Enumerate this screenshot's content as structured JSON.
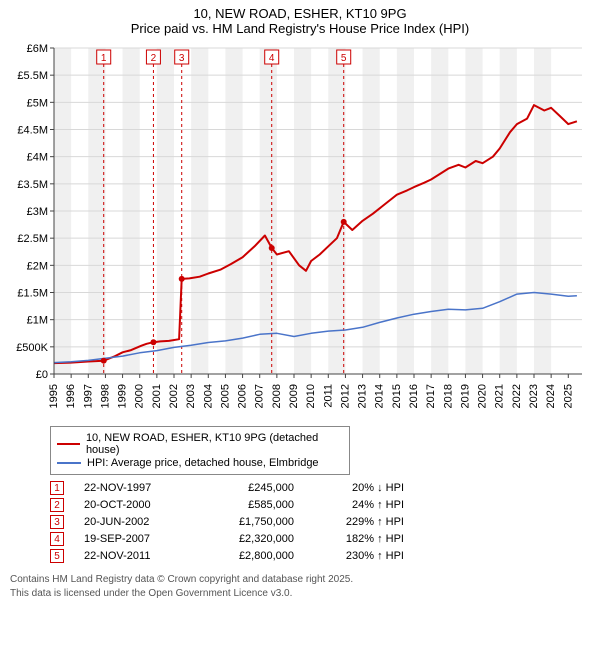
{
  "title": {
    "line1": "10, NEW ROAD, ESHER, KT10 9PG",
    "line2": "Price paid vs. HM Land Registry's House Price Index (HPI)"
  },
  "chart": {
    "type": "line",
    "background_color": "#ffffff",
    "grid_color": "#d8d8d8",
    "grid_alt_fill": "#f0f0f0",
    "axis_color": "#444444",
    "xlim": [
      1995,
      2025.8
    ],
    "ylim": [
      0,
      6000000
    ],
    "x_ticks": [
      1995,
      1996,
      1997,
      1998,
      1999,
      2000,
      2001,
      2002,
      2003,
      2004,
      2005,
      2006,
      2007,
      2008,
      2009,
      2010,
      2011,
      2012,
      2013,
      2014,
      2015,
      2016,
      2017,
      2018,
      2019,
      2020,
      2021,
      2022,
      2023,
      2024,
      2025
    ],
    "y_ticks_values": [
      0,
      500000,
      1000000,
      1500000,
      2000000,
      2500000,
      3000000,
      3500000,
      4000000,
      4500000,
      5000000,
      5500000,
      6000000
    ],
    "y_ticks_labels": [
      "£0",
      "£500K",
      "£1M",
      "£1.5M",
      "£2M",
      "£2.5M",
      "£3M",
      "£3.5M",
      "£4M",
      "£4.5M",
      "£5M",
      "£5.5M",
      "£6M"
    ],
    "x_label_fontsize": 11,
    "y_label_fontsize": 11,
    "series": [
      {
        "name": "property",
        "label": "10, NEW ROAD, ESHER, KT10 9PG (detached house)",
        "color": "#cc0000",
        "line_width": 2,
        "points": [
          [
            1995.0,
            200000
          ],
          [
            1996.0,
            210000
          ],
          [
            1997.0,
            230000
          ],
          [
            1997.9,
            245000
          ],
          [
            1998.5,
            320000
          ],
          [
            1999.0,
            400000
          ],
          [
            1999.5,
            440000
          ],
          [
            2000.1,
            520000
          ],
          [
            2000.4,
            555000
          ],
          [
            2000.8,
            585000
          ],
          [
            2001.2,
            600000
          ],
          [
            2001.7,
            610000
          ],
          [
            2002.3,
            640000
          ],
          [
            2002.45,
            1750000
          ],
          [
            2002.9,
            1760000
          ],
          [
            2003.5,
            1790000
          ],
          [
            2004.0,
            1850000
          ],
          [
            2004.7,
            1920000
          ],
          [
            2005.3,
            2020000
          ],
          [
            2006.0,
            2150000
          ],
          [
            2006.7,
            2350000
          ],
          [
            2007.3,
            2550000
          ],
          [
            2007.7,
            2320000
          ],
          [
            2008.0,
            2200000
          ],
          [
            2008.7,
            2260000
          ],
          [
            2009.3,
            2000000
          ],
          [
            2009.7,
            1900000
          ],
          [
            2010.0,
            2080000
          ],
          [
            2010.5,
            2200000
          ],
          [
            2011.0,
            2350000
          ],
          [
            2011.5,
            2500000
          ],
          [
            2011.9,
            2800000
          ],
          [
            2012.4,
            2650000
          ],
          [
            2013.0,
            2820000
          ],
          [
            2013.6,
            2950000
          ],
          [
            2014.0,
            3050000
          ],
          [
            2014.6,
            3200000
          ],
          [
            2015.0,
            3300000
          ],
          [
            2015.6,
            3380000
          ],
          [
            2016.0,
            3440000
          ],
          [
            2016.6,
            3520000
          ],
          [
            2017.0,
            3580000
          ],
          [
            2017.6,
            3700000
          ],
          [
            2018.0,
            3780000
          ],
          [
            2018.6,
            3850000
          ],
          [
            2019.0,
            3800000
          ],
          [
            2019.6,
            3920000
          ],
          [
            2020.0,
            3880000
          ],
          [
            2020.6,
            4000000
          ],
          [
            2021.0,
            4150000
          ],
          [
            2021.6,
            4450000
          ],
          [
            2022.0,
            4600000
          ],
          [
            2022.6,
            4700000
          ],
          [
            2023.0,
            4950000
          ],
          [
            2023.6,
            4850000
          ],
          [
            2024.0,
            4900000
          ],
          [
            2024.5,
            4750000
          ],
          [
            2025.0,
            4600000
          ],
          [
            2025.5,
            4650000
          ]
        ]
      },
      {
        "name": "hpi",
        "label": "HPI: Average price, detached house, Elmbridge",
        "color": "#4a74c9",
        "line_width": 1.5,
        "points": [
          [
            1995.0,
            210000
          ],
          [
            1996.0,
            225000
          ],
          [
            1997.0,
            250000
          ],
          [
            1998.0,
            290000
          ],
          [
            1999.0,
            330000
          ],
          [
            2000.0,
            390000
          ],
          [
            2001.0,
            430000
          ],
          [
            2002.0,
            490000
          ],
          [
            2003.0,
            530000
          ],
          [
            2004.0,
            580000
          ],
          [
            2005.0,
            610000
          ],
          [
            2006.0,
            660000
          ],
          [
            2007.0,
            730000
          ],
          [
            2008.0,
            750000
          ],
          [
            2009.0,
            690000
          ],
          [
            2010.0,
            750000
          ],
          [
            2011.0,
            790000
          ],
          [
            2012.0,
            810000
          ],
          [
            2013.0,
            860000
          ],
          [
            2014.0,
            950000
          ],
          [
            2015.0,
            1030000
          ],
          [
            2016.0,
            1100000
          ],
          [
            2017.0,
            1150000
          ],
          [
            2018.0,
            1190000
          ],
          [
            2019.0,
            1180000
          ],
          [
            2020.0,
            1210000
          ],
          [
            2021.0,
            1330000
          ],
          [
            2022.0,
            1470000
          ],
          [
            2023.0,
            1500000
          ],
          [
            2024.0,
            1470000
          ],
          [
            2025.0,
            1430000
          ],
          [
            2025.5,
            1440000
          ]
        ]
      }
    ],
    "sale_markers": [
      {
        "n": "1",
        "year": 1997.9
      },
      {
        "n": "2",
        "year": 2000.8
      },
      {
        "n": "3",
        "year": 2002.45
      },
      {
        "n": "4",
        "year": 2007.7
      },
      {
        "n": "5",
        "year": 2011.9
      }
    ],
    "sale_points": [
      {
        "year": 1997.9,
        "value": 245000
      },
      {
        "year": 2000.8,
        "value": 585000
      },
      {
        "year": 2002.45,
        "value": 1750000
      },
      {
        "year": 2007.7,
        "value": 2320000
      },
      {
        "year": 2011.9,
        "value": 2800000
      }
    ],
    "marker_line_color": "#cc0000",
    "marker_line_dash": "3,3",
    "sale_point_radius": 3
  },
  "legend": {
    "items": [
      {
        "color": "#cc0000",
        "label": "10, NEW ROAD, ESHER, KT10 9PG (detached house)"
      },
      {
        "color": "#4a74c9",
        "label": "HPI: Average price, detached house, Elmbridge"
      }
    ]
  },
  "sales": [
    {
      "n": "1",
      "date": "22-NOV-1997",
      "price": "£245,000",
      "diff": "20% ↓ HPI"
    },
    {
      "n": "2",
      "date": "20-OCT-2000",
      "price": "£585,000",
      "diff": "24% ↑ HPI"
    },
    {
      "n": "3",
      "date": "20-JUN-2002",
      "price": "£1,750,000",
      "diff": "229% ↑ HPI"
    },
    {
      "n": "4",
      "date": "19-SEP-2007",
      "price": "£2,320,000",
      "diff": "182% ↑ HPI"
    },
    {
      "n": "5",
      "date": "22-NOV-2011",
      "price": "£2,800,000",
      "diff": "230% ↑ HPI"
    }
  ],
  "footer": {
    "line1": "Contains HM Land Registry data © Crown copyright and database right 2025.",
    "line2": "This data is licensed under the Open Government Licence v3.0."
  }
}
